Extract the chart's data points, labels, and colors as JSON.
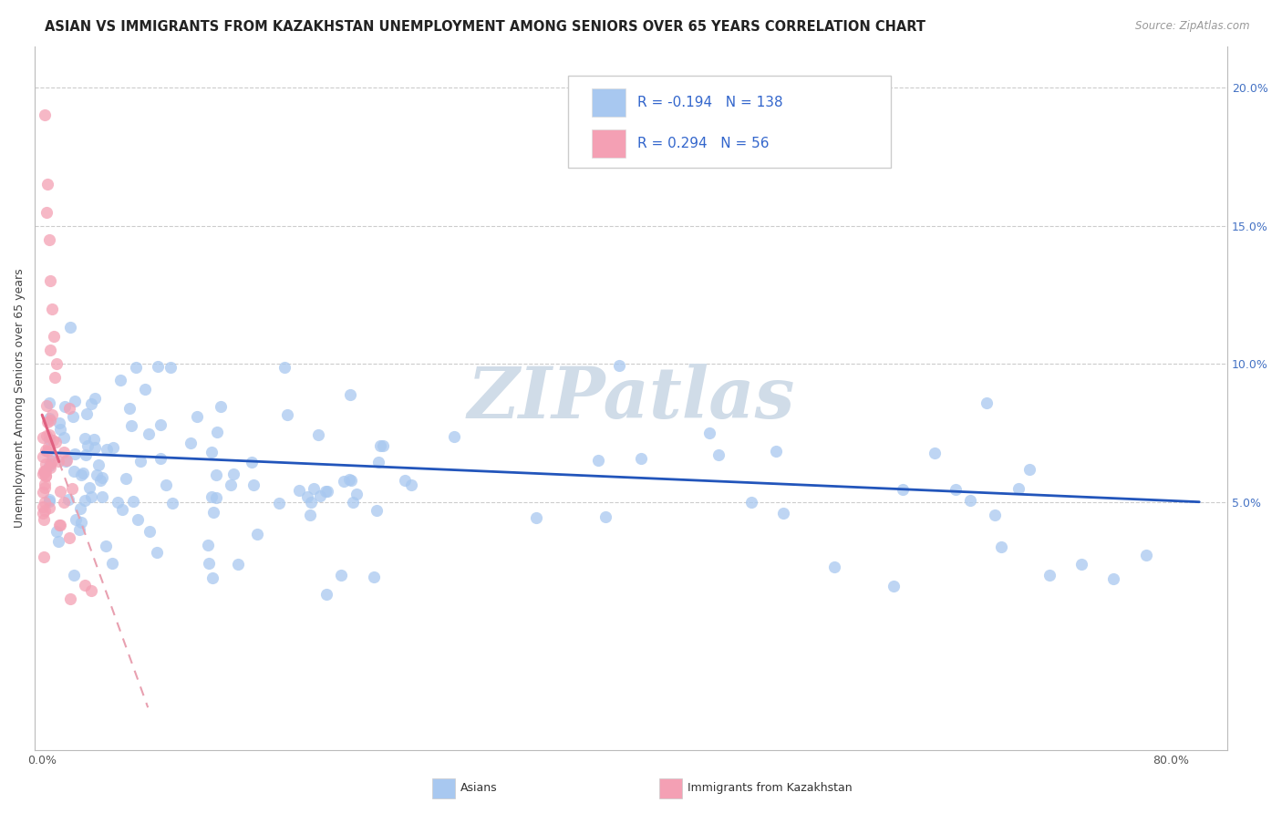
{
  "title": "ASIAN VS IMMIGRANTS FROM KAZAKHSTAN UNEMPLOYMENT AMONG SENIORS OVER 65 YEARS CORRELATION CHART",
  "source": "Source: ZipAtlas.com",
  "ylabel": "Unemployment Among Seniors over 65 years",
  "legend_r": [
    -0.194,
    0.294
  ],
  "legend_n": [
    138,
    56
  ],
  "xlim": [
    -0.005,
    0.84
  ],
  "ylim": [
    -0.04,
    0.215
  ],
  "color_asian": "#a8c8f0",
  "color_kazakh": "#f4a0b4",
  "color_asian_line": "#2255bb",
  "color_kazakh_line": "#e06080",
  "color_kazakh_line_dashed": "#e8a0b0",
  "watermark": "ZIPatlas",
  "watermark_color": "#d0dce8",
  "grid_color": "#cccccc",
  "background_color": "#ffffff",
  "title_fontsize": 10.5,
  "axis_fontsize": 9,
  "tick_fontsize": 9,
  "legend_fontsize": 11
}
